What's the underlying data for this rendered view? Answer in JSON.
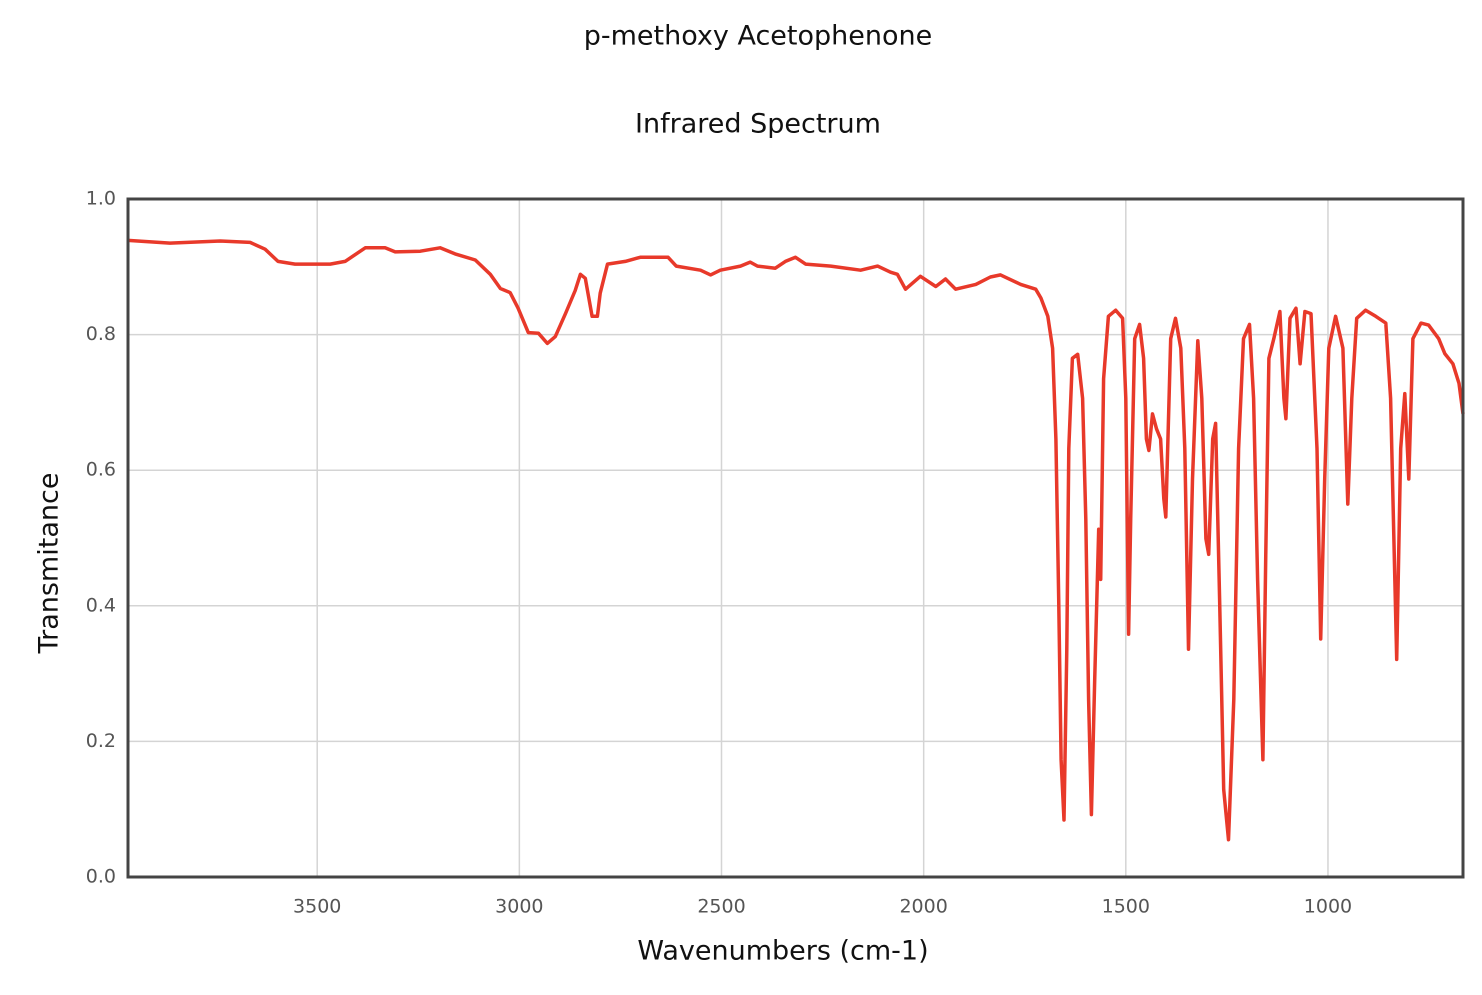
{
  "chart_data": {
    "type": "line",
    "title": "p-methoxy Acetophenone",
    "subtitle": "Infrared Spectrum",
    "x_label": "Wavenumbers (cm-1)",
    "y_label": "Transmitance",
    "xlim": [
      3968,
      666
    ],
    "ylim": [
      0,
      1
    ],
    "xticks": [
      3500,
      3000,
      2500,
      2000,
      1500,
      1000
    ],
    "yticks": [
      {
        "value": 0,
        "label": "0.0"
      },
      0.2,
      0.4,
      0.6,
      0.8,
      {
        "value": 1,
        "label": "1.0"
      }
    ],
    "grid": true,
    "x": [
      3968,
      3864,
      3740,
      3666,
      3629,
      3597,
      3555,
      3468,
      3431,
      3381,
      3332,
      3307,
      3245,
      3196,
      3159,
      3109,
      3072,
      3047,
      3023,
      3003,
      2978,
      2953,
      2931,
      2911,
      2886,
      2862,
      2849,
      2837,
      2820,
      2807,
      2800,
      2782,
      2738,
      2701,
      2632,
      2612,
      2552,
      2527,
      2503,
      2453,
      2429,
      2411,
      2367,
      2342,
      2317,
      2292,
      2230,
      2156,
      2114,
      2082,
      2065,
      2045,
      2008,
      1970,
      1946,
      1921,
      1871,
      1835,
      1810,
      1760,
      1723,
      1710,
      1693,
      1681,
      1673,
      1666,
      1660,
      1653,
      1646,
      1641,
      1632,
      1619,
      1607,
      1599,
      1592,
      1585,
      1577,
      1567,
      1562,
      1555,
      1543,
      1525,
      1508,
      1500,
      1493,
      1488,
      1478,
      1466,
      1456,
      1449,
      1443,
      1434,
      1424,
      1414,
      1406,
      1401,
      1389,
      1377,
      1364,
      1354,
      1345,
      1335,
      1322,
      1312,
      1302,
      1295,
      1285,
      1278,
      1268,
      1258,
      1246,
      1233,
      1221,
      1209,
      1194,
      1184,
      1174,
      1161,
      1154,
      1146,
      1134,
      1119,
      1109,
      1104,
      1094,
      1079,
      1069,
      1057,
      1042,
      1027,
      1018,
      1008,
      998,
      981,
      963,
      951,
      941,
      929,
      907,
      882,
      857,
      845,
      830,
      820,
      810,
      800,
      790,
      770,
      751,
      726,
      711,
      691,
      676,
      666
    ],
    "series": [
      {
        "name": "p-methoxy Acetophenone",
        "color": "#e8392a",
        "values": [
          0.939,
          0.935,
          0.938,
          0.936,
          0.926,
          0.908,
          0.904,
          0.904,
          0.908,
          0.928,
          0.928,
          0.922,
          0.923,
          0.928,
          0.919,
          0.91,
          0.889,
          0.868,
          0.862,
          0.839,
          0.803,
          0.802,
          0.787,
          0.797,
          0.831,
          0.865,
          0.889,
          0.883,
          0.827,
          0.827,
          0.861,
          0.904,
          0.908,
          0.914,
          0.914,
          0.901,
          0.895,
          0.888,
          0.895,
          0.901,
          0.907,
          0.901,
          0.898,
          0.908,
          0.914,
          0.904,
          0.901,
          0.895,
          0.901,
          0.892,
          0.889,
          0.867,
          0.886,
          0.871,
          0.882,
          0.867,
          0.874,
          0.885,
          0.888,
          0.874,
          0.867,
          0.854,
          0.827,
          0.78,
          0.646,
          0.41,
          0.173,
          0.084,
          0.336,
          0.632,
          0.765,
          0.771,
          0.706,
          0.528,
          0.262,
          0.092,
          0.291,
          0.513,
          0.439,
          0.735,
          0.827,
          0.836,
          0.824,
          0.706,
          0.358,
          0.528,
          0.794,
          0.815,
          0.765,
          0.646,
          0.629,
          0.683,
          0.661,
          0.646,
          0.558,
          0.531,
          0.794,
          0.824,
          0.78,
          0.632,
          0.336,
          0.587,
          0.791,
          0.706,
          0.499,
          0.476,
          0.646,
          0.669,
          0.41,
          0.129,
          0.055,
          0.262,
          0.632,
          0.794,
          0.815,
          0.706,
          0.439,
          0.173,
          0.469,
          0.765,
          0.794,
          0.834,
          0.706,
          0.676,
          0.824,
          0.839,
          0.757,
          0.834,
          0.831,
          0.632,
          0.351,
          0.587,
          0.78,
          0.827,
          0.78,
          0.55,
          0.706,
          0.824,
          0.836,
          0.827,
          0.817,
          0.706,
          0.321,
          0.632,
          0.713,
          0.587,
          0.794,
          0.817,
          0.814,
          0.794,
          0.772,
          0.757,
          0.728,
          0.683
        ]
      }
    ]
  }
}
